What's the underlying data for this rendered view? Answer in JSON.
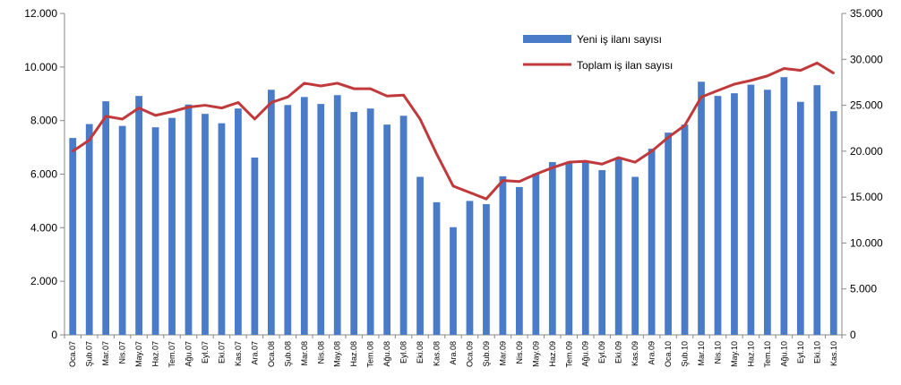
{
  "chart_data": {
    "type": "bar",
    "categories": [
      "Oca.07",
      "Şub.07",
      "Mar.07",
      "Nis.07",
      "May.07",
      "Haz.07",
      "Tem.07",
      "Ağu.07",
      "Eyl.07",
      "Eki.07",
      "Kas.07",
      "Ara.07",
      "Oca.08",
      "Şub.08",
      "Mar.08",
      "Nis.08",
      "May.08",
      "Haz.08",
      "Tem.08",
      "Ağu.08",
      "Eyl.08",
      "Eki.08",
      "Kas.08",
      "Ara.08",
      "Oca.09",
      "Şub.09",
      "Mar.09",
      "Nis.09",
      "May.09",
      "Haz.09",
      "Tem.09",
      "Ağu.09",
      "Eyl.09",
      "Eki.09",
      "Kas.09",
      "Ara.09",
      "Oca.10",
      "Şub.10",
      "Mar.10",
      "Nis.10",
      "May.10",
      "Haz.10",
      "Tem.10",
      "Ağu.10",
      "Eyl.10",
      "Eki.10",
      "Kas.10"
    ],
    "series": [
      {
        "name": "Yeni iş ilanı sayısı",
        "type": "bar",
        "axis": "left",
        "color": "#4a7bc8",
        "values": [
          7350,
          7870,
          8720,
          7800,
          8920,
          7750,
          8100,
          8600,
          8250,
          7900,
          8450,
          6620,
          9150,
          8580,
          8880,
          8620,
          8950,
          8320,
          8450,
          7850,
          8180,
          5900,
          4950,
          4020,
          5000,
          4880,
          5920,
          5520,
          6020,
          6450,
          6450,
          6480,
          6150,
          6600,
          5900,
          6950,
          7550,
          7850,
          9450,
          8920,
          9020,
          9340,
          9150,
          9620,
          8700,
          9320,
          8350
        ]
      },
      {
        "name": "Toplam iş ilan sayısı",
        "type": "line",
        "axis": "right",
        "color": "#c0393b",
        "values": [
          20000,
          21200,
          23800,
          23500,
          24700,
          23900,
          24300,
          24800,
          25000,
          24700,
          25300,
          23500,
          25300,
          25900,
          27400,
          27100,
          27400,
          26800,
          26800,
          26000,
          26100,
          23500,
          19700,
          16200,
          15500,
          14800,
          16800,
          16700,
          17500,
          18200,
          18800,
          18900,
          18600,
          19300,
          18800,
          20000,
          21500,
          22800,
          25900,
          26600,
          27300,
          27700,
          28200,
          29000,
          28800,
          29600,
          28500
        ]
      }
    ],
    "y_left": {
      "min": 0,
      "max": 12000,
      "ticks": [
        "0",
        "2.000",
        "4.000",
        "6.000",
        "8.000",
        "10.000",
        "12.000"
      ]
    },
    "y_right": {
      "min": 0,
      "max": 35000,
      "ticks": [
        "0",
        "5.000",
        "10.000",
        "15.000",
        "20.000",
        "25.000",
        "30.000",
        "35.000"
      ]
    },
    "grid": false,
    "legend_position": "top-right"
  },
  "legend": {
    "bar_label": "Yeni iş ilanı sayısı",
    "line_label": "Toplam iş ilan sayısı"
  }
}
